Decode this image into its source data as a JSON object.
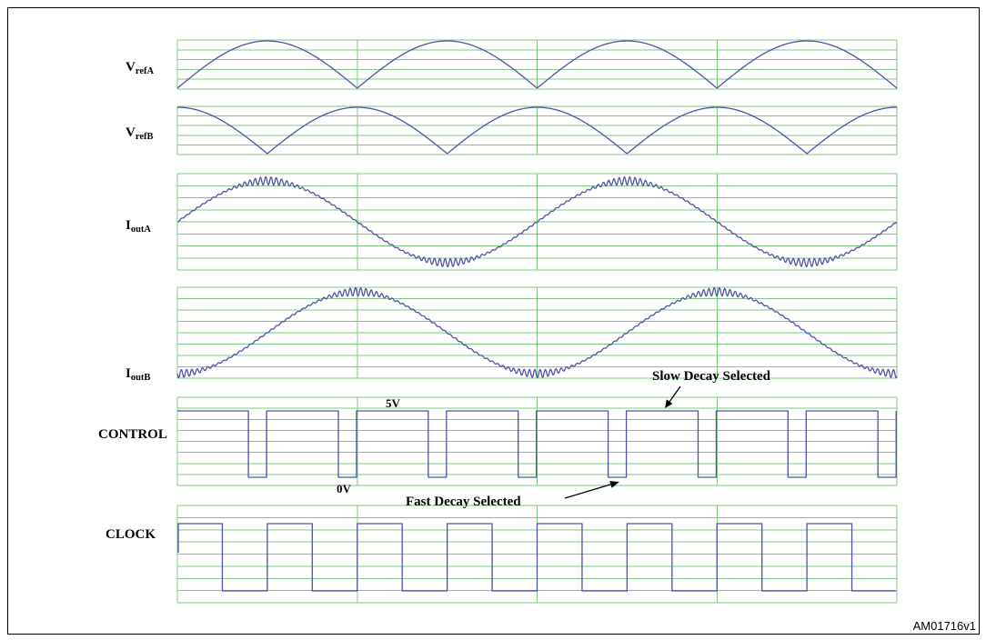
{
  "colors": {
    "grid": "#80c880",
    "trace": "#4f52a6"
  },
  "signals": [
    {
      "main": "V",
      "sub": "refA"
    },
    {
      "main": "V",
      "sub": "refB"
    },
    {
      "main": "I",
      "sub": "outA"
    },
    {
      "main": "I",
      "sub": "outB"
    },
    {
      "main": "CONTROL"
    },
    {
      "main": "CLOCK"
    }
  ],
  "annotations": {
    "control_high": "5V",
    "control_low": "0V",
    "slow_decay": "Slow Decay Selected",
    "fast_decay": "Fast Decay Selected"
  },
  "figure_id": "AM01716v1"
}
